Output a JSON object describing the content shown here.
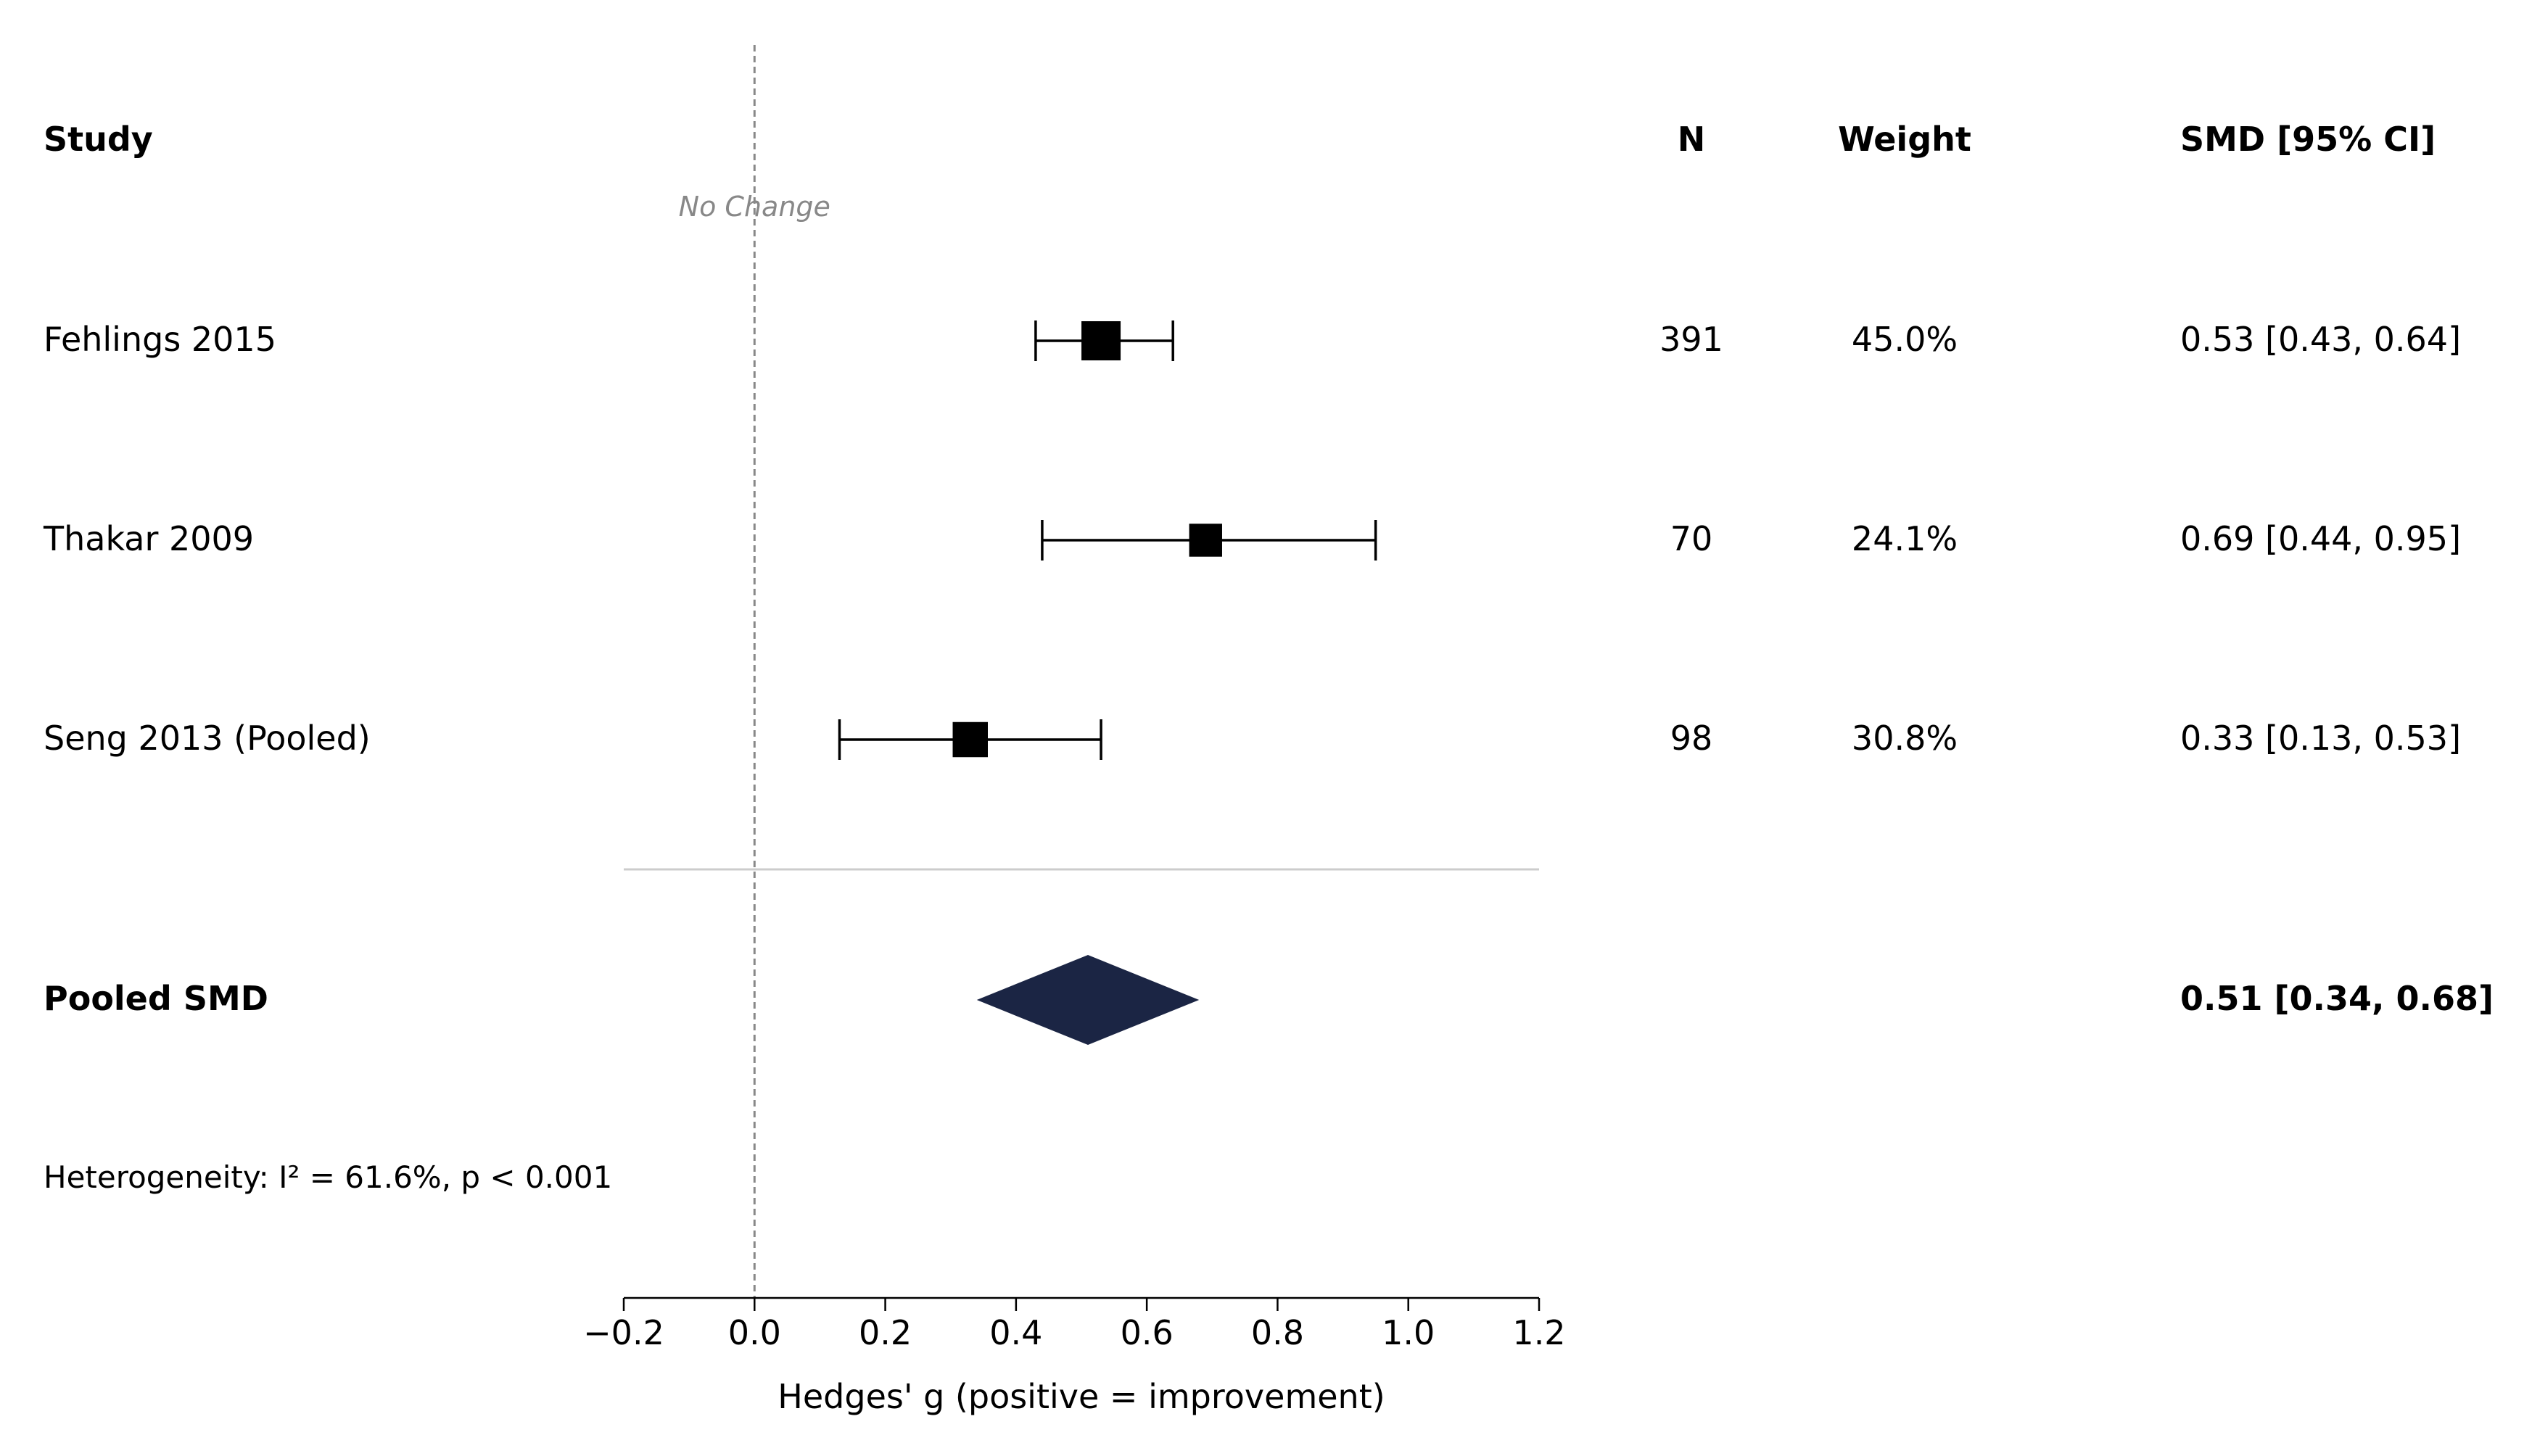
{
  "chart_data": {
    "type": "forest",
    "columns": {
      "study": "Study",
      "n": "N",
      "weight": "Weight",
      "smd": "SMD [95% CI]"
    },
    "studies": [
      {
        "name": "Fehlings 2015",
        "n": "391",
        "weight": "45.0%",
        "smd_text": "0.53 [0.43, 0.64]",
        "estimate": 0.53,
        "ci_low": 0.43,
        "ci_high": 0.64,
        "weight_value": 45.0
      },
      {
        "name": "Thakar 2009",
        "n": "70",
        "weight": "24.1%",
        "smd_text": "0.69 [0.44, 0.95]",
        "estimate": 0.69,
        "ci_low": 0.44,
        "ci_high": 0.95,
        "weight_value": 24.1
      },
      {
        "name": "Seng 2013 (Pooled)",
        "n": "98",
        "weight": "30.8%",
        "smd_text": "0.33 [0.13, 0.53]",
        "estimate": 0.33,
        "ci_low": 0.13,
        "ci_high": 0.53,
        "weight_value": 30.8
      }
    ],
    "pooled": {
      "label": "Pooled SMD",
      "smd_text": "0.51 [0.34, 0.68]",
      "estimate": 0.51,
      "ci_low": 0.34,
      "ci_high": 0.68
    },
    "heterogeneity": "Heterogeneity: I² = 61.6%, p < 0.001",
    "reference_line": {
      "value": 0.0,
      "label": "No Change"
    },
    "xlim": [
      -0.2,
      1.2
    ],
    "xticks": [
      -0.2,
      0.0,
      0.2,
      0.4,
      0.6,
      0.8,
      1.0,
      1.2
    ],
    "xtick_labels": [
      "−0.2",
      "0.0",
      "0.2",
      "0.4",
      "0.6",
      "0.8",
      "1.0",
      "1.2"
    ],
    "xlabel": "Hedges' g (positive = improvement)",
    "colors": {
      "marker": "#000000",
      "diamond": "#1b2544",
      "reference_line": "#888888",
      "separator": "#cccccc"
    }
  }
}
